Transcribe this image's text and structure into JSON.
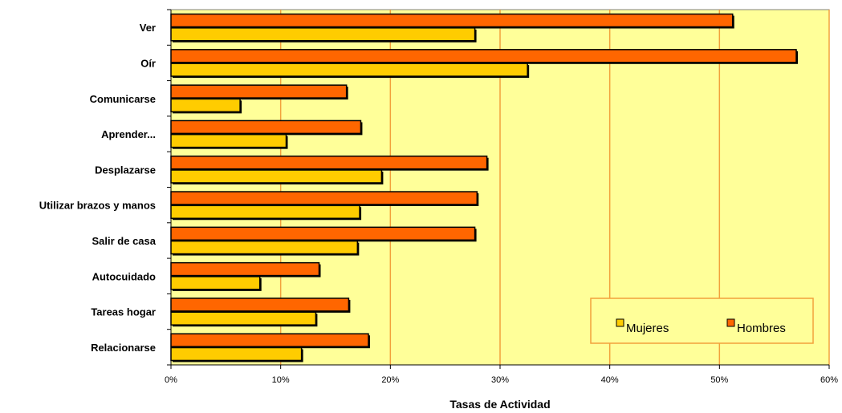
{
  "chart_data": {
    "type": "bar",
    "orientation": "horizontal",
    "categories": [
      "Ver",
      "Oír",
      "Comunicarse",
      "Aprender...",
      "Desplazarse",
      "Utilizar brazos y manos",
      "Salir de casa",
      "Autocuidado",
      "Tareas hogar",
      "Relacionarse"
    ],
    "series": [
      {
        "name": "Hombres",
        "color": "#ff6600",
        "values": [
          51.2,
          57.0,
          16.0,
          17.3,
          28.8,
          27.9,
          27.7,
          13.5,
          16.2,
          18.0
        ]
      },
      {
        "name": "Mujeres",
        "color": "#ffcc00",
        "values": [
          27.7,
          32.5,
          6.3,
          10.5,
          19.2,
          17.2,
          17.0,
          8.1,
          13.2,
          11.9
        ]
      }
    ],
    "xlabel": "Tasas de Actividad",
    "ylabel": "",
    "xlim": [
      0,
      60
    ],
    "xticks": [
      "0%",
      "10%",
      "20%",
      "30%",
      "40%",
      "50%",
      "60%"
    ],
    "grid": "vertical",
    "plot_background": "#ffff99",
    "gridline_color": "#f2a13c",
    "legend": {
      "placement": "bottom-right",
      "entries": [
        "Mujeres",
        "Hombres"
      ]
    }
  }
}
